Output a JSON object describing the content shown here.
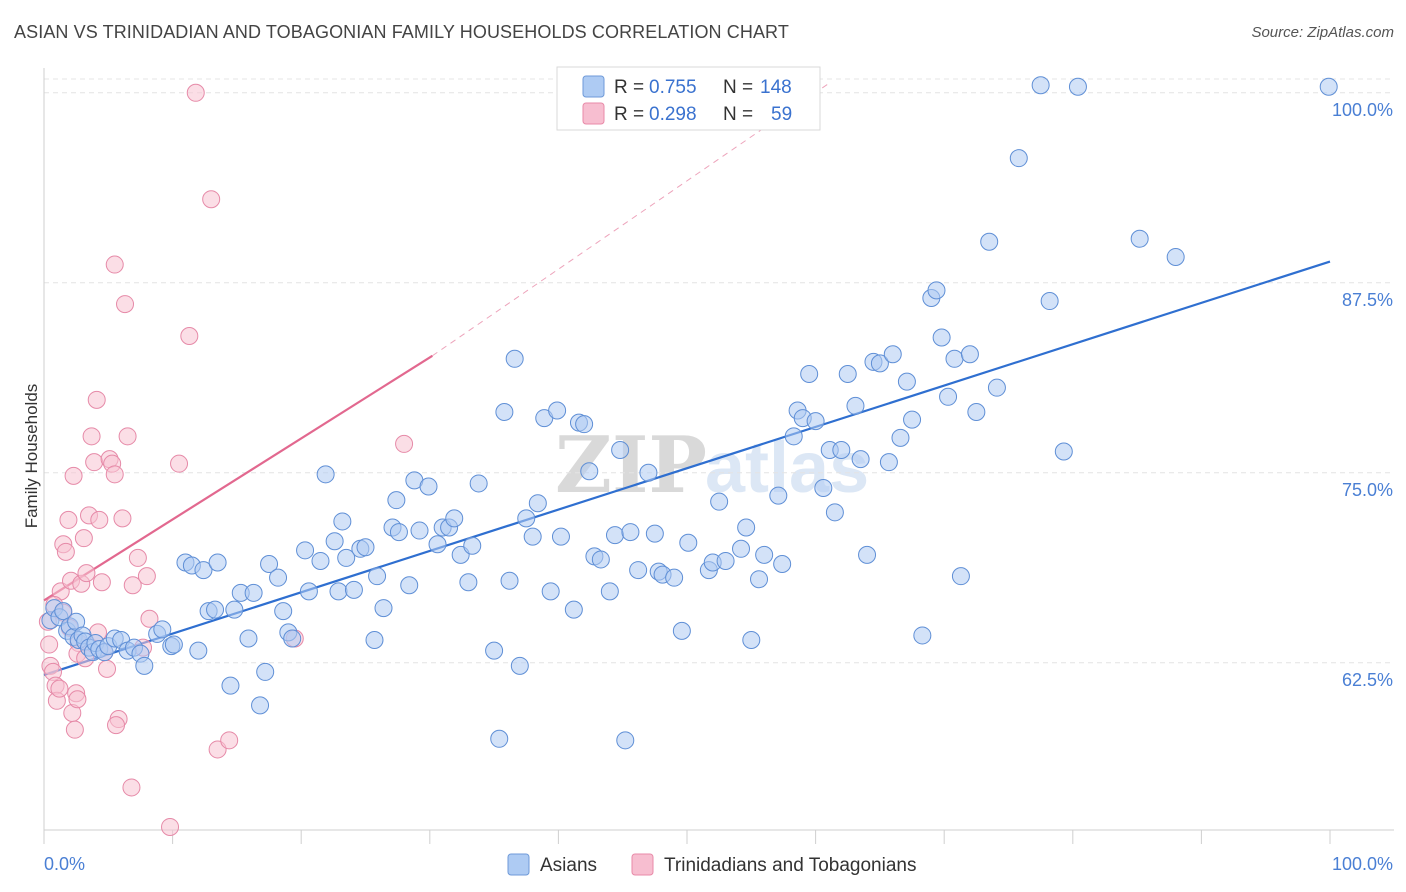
{
  "header": {
    "title": "ASIAN VS TRINIDADIAN AND TOBAGONIAN FAMILY HOUSEHOLDS CORRELATION CHART",
    "source": "Source: ZipAtlas.com"
  },
  "legend": {
    "r_label": "R =",
    "n_label": "N =",
    "items": [
      {
        "name": "Asians",
        "r": "0.755",
        "n": "148",
        "fill": "#aecbf3",
        "stroke": "#6f9ad8"
      },
      {
        "name": "Trinidadians and Tobagonians",
        "r": "0.298",
        "n": "59",
        "fill": "#f7bed0",
        "stroke": "#e88aa8"
      }
    ]
  },
  "watermark": {
    "part1": "ZIP",
    "part2": "atlas"
  },
  "colors": {
    "blue_fill": "#aecbf3",
    "blue_stroke": "#5f8fd6",
    "blue_line": "#2f6fd0",
    "pink_fill": "#f7c2d2",
    "pink_stroke": "#e68aa8",
    "pink_line": "#e2688f",
    "grid": "#e4e4e4",
    "tick_text": "#4a7fd4"
  },
  "chart_data": {
    "type": "scatter",
    "title": "ASIAN VS TRINIDADIAN AND TOBAGONIAN FAMILY HOUSEHOLDS CORRELATION CHART",
    "xlabel": "",
    "ylabel": "Family Households",
    "xlim": [
      0,
      100
    ],
    "ylim": [
      51.5,
      101.5
    ],
    "x_tick_labels": [
      {
        "value": 0,
        "label": "0.0%"
      },
      {
        "value": 100,
        "label": "100.0%"
      }
    ],
    "y_ticks": [
      {
        "value": 62.5,
        "label": "62.5%"
      },
      {
        "value": 75.0,
        "label": "75.0%"
      },
      {
        "value": 87.5,
        "label": "87.5%"
      },
      {
        "value": 100.0,
        "label": "100.0%"
      }
    ],
    "grid": true,
    "legend_position": "top-center",
    "series": [
      {
        "name": "Asians",
        "trend": {
          "x": [
            0,
            100
          ],
          "y": [
            61.7,
            88.9
          ]
        },
        "points": [
          [
            0.5,
            65.3
          ],
          [
            0.8,
            66.1
          ],
          [
            1.2,
            65.5
          ],
          [
            1.5,
            65.9
          ],
          [
            1.8,
            64.6
          ],
          [
            2.0,
            64.9
          ],
          [
            2.3,
            64.2
          ],
          [
            2.5,
            65.2
          ],
          [
            2.7,
            64.0
          ],
          [
            3.0,
            64.3
          ],
          [
            3.2,
            63.9
          ],
          [
            3.5,
            63.5
          ],
          [
            3.8,
            63.2
          ],
          [
            4.0,
            63.8
          ],
          [
            4.3,
            63.4
          ],
          [
            4.7,
            63.2
          ],
          [
            5.0,
            63.6
          ],
          [
            5.5,
            64.1
          ],
          [
            6.0,
            64.0
          ],
          [
            6.5,
            63.3
          ],
          [
            7.0,
            63.5
          ],
          [
            7.5,
            63.1
          ],
          [
            7.8,
            62.3
          ],
          [
            8.8,
            64.4
          ],
          [
            9.2,
            64.7
          ],
          [
            9.9,
            63.6
          ],
          [
            10.1,
            63.7
          ],
          [
            11.0,
            69.1
          ],
          [
            11.5,
            68.9
          ],
          [
            12.0,
            63.3
          ],
          [
            12.4,
            68.6
          ],
          [
            12.8,
            65.9
          ],
          [
            13.3,
            66.0
          ],
          [
            13.5,
            69.1
          ],
          [
            14.5,
            61.0
          ],
          [
            14.8,
            66.0
          ],
          [
            15.3,
            67.1
          ],
          [
            15.9,
            64.1
          ],
          [
            16.3,
            67.1
          ],
          [
            16.8,
            59.7
          ],
          [
            17.2,
            61.9
          ],
          [
            17.5,
            69.0
          ],
          [
            18.2,
            68.1
          ],
          [
            18.6,
            65.9
          ],
          [
            19.0,
            64.5
          ],
          [
            19.3,
            64.1
          ],
          [
            20.3,
            69.9
          ],
          [
            20.6,
            67.2
          ],
          [
            21.5,
            69.2
          ],
          [
            21.9,
            74.9
          ],
          [
            22.6,
            70.5
          ],
          [
            22.9,
            67.2
          ],
          [
            23.2,
            71.8
          ],
          [
            23.5,
            69.4
          ],
          [
            24.1,
            67.3
          ],
          [
            24.6,
            70.0
          ],
          [
            25.0,
            70.1
          ],
          [
            25.7,
            64.0
          ],
          [
            25.9,
            68.2
          ],
          [
            26.4,
            66.1
          ],
          [
            27.1,
            71.4
          ],
          [
            27.4,
            73.2
          ],
          [
            27.6,
            71.1
          ],
          [
            28.4,
            67.6
          ],
          [
            28.8,
            74.5
          ],
          [
            29.2,
            71.2
          ],
          [
            29.9,
            74.1
          ],
          [
            30.6,
            70.3
          ],
          [
            31.0,
            71.4
          ],
          [
            31.5,
            71.4
          ],
          [
            31.9,
            72.0
          ],
          [
            32.4,
            69.6
          ],
          [
            33.0,
            67.8
          ],
          [
            33.3,
            70.2
          ],
          [
            33.8,
            74.3
          ],
          [
            35.0,
            63.3
          ],
          [
            35.4,
            57.5
          ],
          [
            35.8,
            79.0
          ],
          [
            36.2,
            67.9
          ],
          [
            36.6,
            82.5
          ],
          [
            37.0,
            62.3
          ],
          [
            37.5,
            72.0
          ],
          [
            38.0,
            70.8
          ],
          [
            38.4,
            73.0
          ],
          [
            38.9,
            78.6
          ],
          [
            39.4,
            67.2
          ],
          [
            39.9,
            79.1
          ],
          [
            40.2,
            70.8
          ],
          [
            41.2,
            66.0
          ],
          [
            41.6,
            78.3
          ],
          [
            42.0,
            78.2
          ],
          [
            42.4,
            75.1
          ],
          [
            42.8,
            69.5
          ],
          [
            43.3,
            69.3
          ],
          [
            44.0,
            67.2
          ],
          [
            44.4,
            70.9
          ],
          [
            44.8,
            76.5
          ],
          [
            45.2,
            57.4
          ],
          [
            45.6,
            71.1
          ],
          [
            46.2,
            68.6
          ],
          [
            47.0,
            75.0
          ],
          [
            47.5,
            71.0
          ],
          [
            47.8,
            68.5
          ],
          [
            48.1,
            68.3
          ],
          [
            49.0,
            68.1
          ],
          [
            49.6,
            64.6
          ],
          [
            50.1,
            70.4
          ],
          [
            51.7,
            68.6
          ],
          [
            52.0,
            69.1
          ],
          [
            52.5,
            73.1
          ],
          [
            53.0,
            69.2
          ],
          [
            54.2,
            70.0
          ],
          [
            54.6,
            71.4
          ],
          [
            55.0,
            64.0
          ],
          [
            55.6,
            68.0
          ],
          [
            56.0,
            69.6
          ],
          [
            57.1,
            73.5
          ],
          [
            57.4,
            69.0
          ],
          [
            58.3,
            77.4
          ],
          [
            58.6,
            79.1
          ],
          [
            59.0,
            78.6
          ],
          [
            59.5,
            81.5
          ],
          [
            60.0,
            78.4
          ],
          [
            60.6,
            74.0
          ],
          [
            61.1,
            76.5
          ],
          [
            61.5,
            72.4
          ],
          [
            62.0,
            76.5
          ],
          [
            62.5,
            81.5
          ],
          [
            63.1,
            79.4
          ],
          [
            63.5,
            75.9
          ],
          [
            64.0,
            69.6
          ],
          [
            64.5,
            82.3
          ],
          [
            65.0,
            82.2
          ],
          [
            65.7,
            75.7
          ],
          [
            66.0,
            82.8
          ],
          [
            66.6,
            77.3
          ],
          [
            67.1,
            81.0
          ],
          [
            67.5,
            78.5
          ],
          [
            68.3,
            64.3
          ],
          [
            69.0,
            86.5
          ],
          [
            69.4,
            87.0
          ],
          [
            69.8,
            83.9
          ],
          [
            70.3,
            80.0
          ],
          [
            70.8,
            82.5
          ],
          [
            71.3,
            68.2
          ],
          [
            72.0,
            82.8
          ],
          [
            72.5,
            79.0
          ],
          [
            73.5,
            90.2
          ],
          [
            74.1,
            80.6
          ],
          [
            75.8,
            95.7
          ],
          [
            77.5,
            100.5
          ],
          [
            78.2,
            86.3
          ],
          [
            79.3,
            76.4
          ],
          [
            80.4,
            100.4
          ],
          [
            85.2,
            90.4
          ],
          [
            88.0,
            89.2
          ],
          [
            99.9,
            100.4
          ]
        ]
      },
      {
        "name": "Trinidadians and Tobagonians",
        "trend": {
          "x": [
            0,
            30.2
          ],
          "y": [
            66.6,
            82.7
          ]
        },
        "trend_extended": {
          "x": [
            30.2,
            61.0
          ],
          "y": [
            82.7,
            100.6
          ]
        },
        "points": [
          [
            0.3,
            65.2
          ],
          [
            0.4,
            63.7
          ],
          [
            0.5,
            62.3
          ],
          [
            0.7,
            61.9
          ],
          [
            0.9,
            61.0
          ],
          [
            1.0,
            60.0
          ],
          [
            1.3,
            67.2
          ],
          [
            1.5,
            70.3
          ],
          [
            1.7,
            69.8
          ],
          [
            1.9,
            71.9
          ],
          [
            2.1,
            67.9
          ],
          [
            2.3,
            74.8
          ],
          [
            2.5,
            60.5
          ],
          [
            2.7,
            63.8
          ],
          [
            2.9,
            67.7
          ],
          [
            3.1,
            70.7
          ],
          [
            3.3,
            68.4
          ],
          [
            3.5,
            72.2
          ],
          [
            3.7,
            77.4
          ],
          [
            3.9,
            75.7
          ],
          [
            4.1,
            79.8
          ],
          [
            4.3,
            71.9
          ],
          [
            4.5,
            67.8
          ],
          [
            4.7,
            63.2
          ],
          [
            4.9,
            62.1
          ],
          [
            5.1,
            75.9
          ],
          [
            5.3,
            75.6
          ],
          [
            5.5,
            74.9
          ],
          [
            5.8,
            58.8
          ],
          [
            6.1,
            72.0
          ],
          [
            6.5,
            77.4
          ],
          [
            6.9,
            67.6
          ],
          [
            7.3,
            69.4
          ],
          [
            7.7,
            63.5
          ],
          [
            8.0,
            68.2
          ],
          [
            8.2,
            65.4
          ],
          [
            4.2,
            64.5
          ],
          [
            1.5,
            65.8
          ],
          [
            2.0,
            64.8
          ],
          [
            2.6,
            63.1
          ],
          [
            2.2,
            59.2
          ],
          [
            2.4,
            58.1
          ],
          [
            5.6,
            58.4
          ],
          [
            6.8,
            54.3
          ],
          [
            6.3,
            86.1
          ],
          [
            5.5,
            88.7
          ],
          [
            9.8,
            51.7
          ],
          [
            10.5,
            75.6
          ],
          [
            11.3,
            84.0
          ],
          [
            11.8,
            100.0
          ],
          [
            13.0,
            93.0
          ],
          [
            13.5,
            56.8
          ],
          [
            14.4,
            57.4
          ],
          [
            19.5,
            64.1
          ],
          [
            28.0,
            76.9
          ],
          [
            3.2,
            62.8
          ],
          [
            0.8,
            66.3
          ],
          [
            1.2,
            60.8
          ],
          [
            2.6,
            60.1
          ]
        ]
      }
    ]
  }
}
